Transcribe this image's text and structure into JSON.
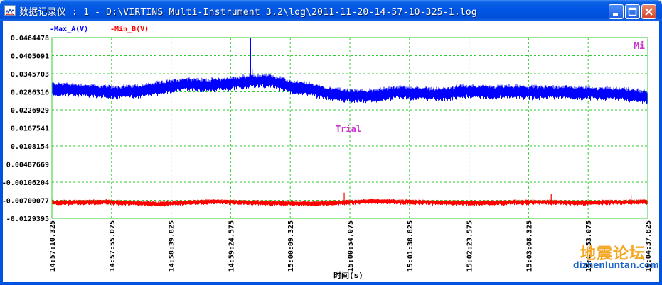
{
  "window": {
    "title": "数据记录仪 : 1 - D:\\VIRTINS Multi-Instrument 3.2\\log\\2011-11-20-14-57-10-325-1.log"
  },
  "chart_data": {
    "type": "line",
    "title": "",
    "xlabel": "时间(s)",
    "ylabel": "",
    "y_tick_labels": [
      "0.0464478",
      "0.0405091",
      "0.0345703",
      "0.0286316",
      "0.0226929",
      "0.0167541",
      "0.0108154",
      "0.00487669",
      "-0.00106204",
      "-0.00700077",
      "-0.0129395"
    ],
    "ylim": [
      -0.0129395,
      0.0464478
    ],
    "x_tick_labels": [
      "14:57:10.325",
      "14:57:55.075",
      "14:58:39.825",
      "14:59:24.575",
      "15:00:09.325",
      "15:00:54.075",
      "15:01:38.825",
      "15:02:23.575",
      "15:03:08.325",
      "15:03:53.075",
      "15:04:37.825"
    ],
    "xlim_seconds": [
      0,
      447.5
    ],
    "grid": true,
    "legend_position": "top-left",
    "annotations": [
      "Trial",
      "Mi"
    ],
    "series": [
      {
        "name": "Max_A(V)",
        "color": "#0000ff",
        "x_seconds": [
          0,
          25,
          45,
          65,
          85,
          100,
          115,
          135,
          150,
          160,
          165,
          170,
          180,
          195,
          205,
          220,
          235,
          245,
          260,
          275,
          295,
          310,
          330,
          345,
          365,
          380,
          395,
          410,
          430,
          447.5
        ],
        "values": [
          0.0296,
          0.0291,
          0.0284,
          0.0289,
          0.0301,
          0.0312,
          0.0308,
          0.0313,
          0.0321,
          0.0323,
          0.0322,
          0.0315,
          0.0302,
          0.0295,
          0.0283,
          0.0274,
          0.0271,
          0.0276,
          0.0284,
          0.0281,
          0.0278,
          0.0289,
          0.0285,
          0.0287,
          0.0284,
          0.0286,
          0.0283,
          0.0281,
          0.0279,
          0.0268
        ],
        "spikes": [
          {
            "x_seconds": 149.2,
            "value": 0.0464
          },
          {
            "x_seconds": 150.4,
            "value": 0.0362
          },
          {
            "x_seconds": 171.0,
            "value": 0.0311
          }
        ]
      },
      {
        "name": "Min_B(V)",
        "color": "#ff0000",
        "x_seconds": [
          0,
          40,
          80,
          120,
          160,
          200,
          240,
          280,
          320,
          360,
          400,
          447.5
        ],
        "values": [
          -0.0078,
          -0.0076,
          -0.0082,
          -0.0074,
          -0.0079,
          -0.0081,
          -0.0073,
          -0.0077,
          -0.0079,
          -0.0076,
          -0.0078,
          -0.0075
        ],
        "spikes": [
          {
            "x_seconds": 219.5,
            "value": -0.0045
          },
          {
            "x_seconds": 375.0,
            "value": -0.0048
          },
          {
            "x_seconds": 435.0,
            "value": -0.0052
          }
        ]
      }
    ]
  },
  "watermark": {
    "text_cn": "地震论坛",
    "text_url": "dizhenluntan.com"
  },
  "colors": {
    "plot_border": "#33cc33",
    "grid": "#33cc33",
    "trial": "#cc33cc",
    "mi": "#cc33cc"
  },
  "icons": [
    "app-chart-icon",
    "minimize-icon",
    "maximize-icon",
    "close-icon"
  ]
}
